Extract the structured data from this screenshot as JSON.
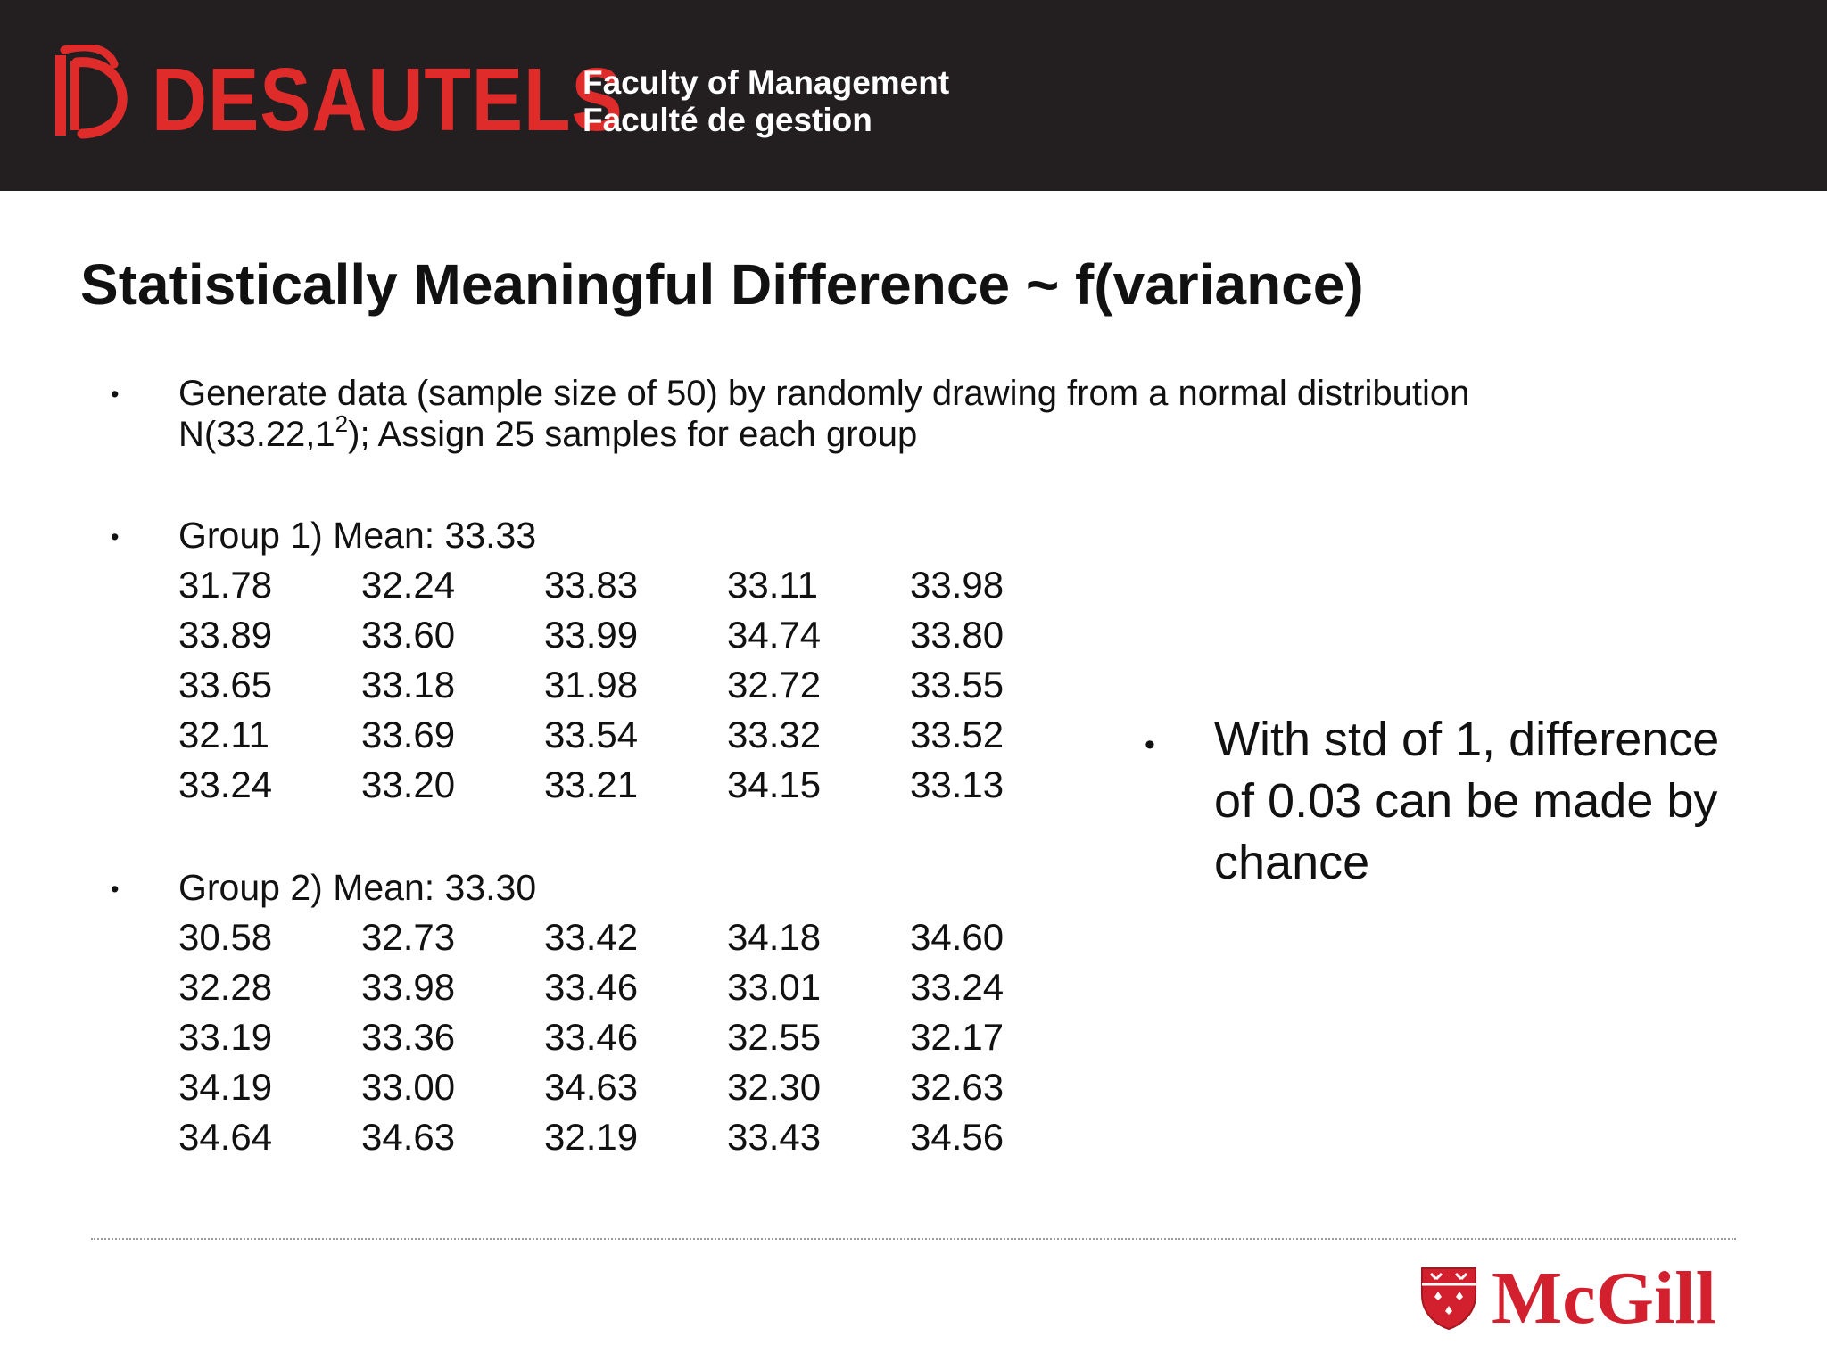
{
  "header": {
    "brand": "DESAUTELS",
    "faculty_en": "Faculty of Management",
    "faculty_fr": "Faculté de gestion",
    "brand_color": "#e02b2b",
    "bar_color": "#231f20"
  },
  "slide": {
    "title": "Statistically Meaningful Difference ~ f(variance)",
    "bullet_symbol": "•",
    "intro_line1": "Generate data (sample size of 50) by randomly drawing from a normal distribution",
    "intro_line2_pre": "N(33.22,1",
    "intro_line2_sup": "2",
    "intro_line2_post": "); Assign 25 samples for each group",
    "group1": {
      "label": "Group 1) Mean: 33.33",
      "rows": [
        [
          "31.78",
          "32.24",
          "33.83",
          "33.11",
          "33.98"
        ],
        [
          "33.89",
          "33.60",
          "33.99",
          "34.74",
          "33.80"
        ],
        [
          "33.65",
          "33.18",
          "31.98",
          "32.72",
          "33.55"
        ],
        [
          "32.11",
          "33.69",
          "33.54",
          "33.32",
          "33.52"
        ],
        [
          "33.24",
          "33.20",
          "33.21",
          "34.15",
          "33.13"
        ]
      ]
    },
    "group2": {
      "label": "Group 2) Mean: 33.30",
      "rows": [
        [
          "30.58",
          "32.73",
          "33.42",
          "34.18",
          "34.60"
        ],
        [
          "32.28",
          "33.98",
          "33.46",
          "33.01",
          "33.24"
        ],
        [
          "33.19",
          "33.36",
          "33.46",
          "32.55",
          "32.17"
        ],
        [
          "34.19",
          "33.00",
          "34.63",
          "32.30",
          "32.63"
        ],
        [
          "34.64",
          "34.63",
          "32.19",
          "33.43",
          "34.56"
        ]
      ]
    },
    "side_note": "With std of 1, difference of 0.03 can be made by chance"
  },
  "footer": {
    "university": "McGill",
    "university_color": "#d3202f"
  }
}
